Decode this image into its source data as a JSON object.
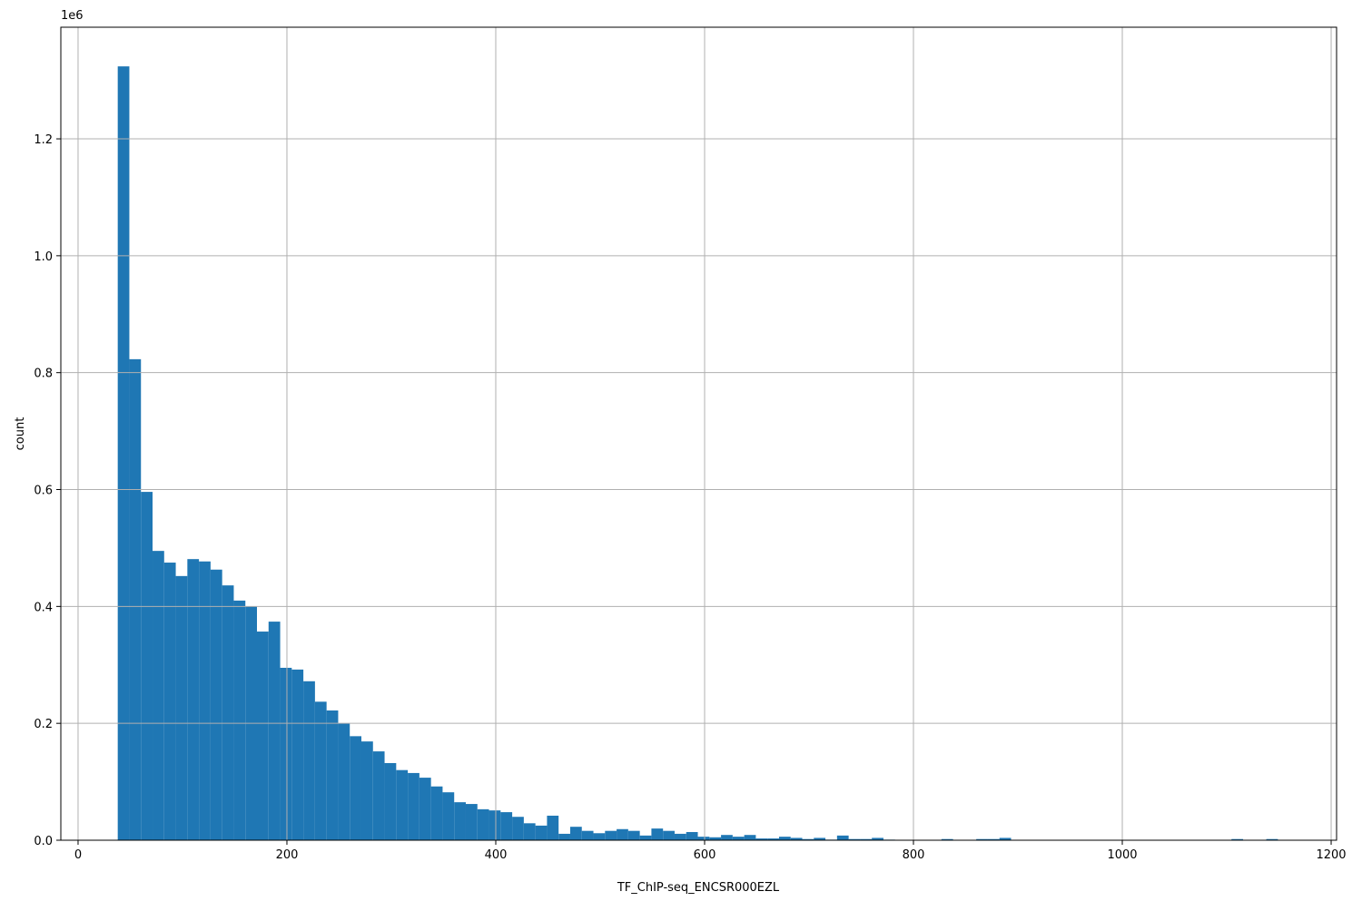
{
  "chart_data": {
    "type": "histogram",
    "x_label": "TF_ChIP-seq_ENCSR000EZL",
    "y_label": "count",
    "y_offset_label": "1e6",
    "color": "#1f77b4",
    "grid": true,
    "bins": [
      38,
      49.11,
      60.22,
      71.33,
      82.44,
      93.55,
      104.66,
      115.77,
      126.88,
      137.99,
      149.1,
      160.21,
      171.32,
      182.43,
      193.54,
      204.65,
      215.76,
      226.87,
      237.98,
      249.09,
      260.2,
      271.31,
      282.42,
      293.53,
      304.64,
      315.75,
      326.86,
      337.97,
      349.08,
      360.19,
      371.3,
      382.41,
      393.52,
      404.63,
      415.74,
      426.85,
      437.96,
      449.07,
      460.18,
      471.29,
      482.4,
      493.51,
      504.62,
      515.73,
      526.84,
      537.95,
      549.06,
      560.17,
      571.28,
      582.39,
      593.5,
      604.61,
      615.72,
      626.83,
      637.94,
      649.05,
      660.16,
      671.27,
      682.38,
      693.49,
      704.6,
      715.71,
      726.82,
      737.93,
      749.04,
      760.15,
      771.26,
      782.37,
      793.48,
      804.59,
      815.7,
      826.81,
      837.92,
      849.03,
      860.14,
      871.25,
      882.36,
      893.47,
      904.58,
      915.69,
      926.8,
      937.91,
      949.02,
      960.13,
      971.24,
      982.35,
      993.46,
      1004.57,
      1015.68,
      1026.79,
      1037.9,
      1049.01,
      1060.12,
      1071.23,
      1082.34,
      1093.45,
      1104.56,
      1115.67,
      1126.78,
      1137.89,
      1149
    ],
    "counts": [
      1324000,
      823000,
      596000,
      495000,
      475000,
      452000,
      481000,
      477000,
      463000,
      436000,
      410000,
      400000,
      357000,
      374000,
      295000,
      292000,
      272000,
      237000,
      222000,
      200000,
      178000,
      169000,
      152000,
      132000,
      120000,
      115000,
      107000,
      92000,
      82000,
      65000,
      62000,
      53000,
      51000,
      48000,
      40000,
      29000,
      25000,
      42000,
      11000,
      23000,
      16000,
      12000,
      16000,
      19000,
      16000,
      8000,
      20000,
      16000,
      11000,
      14000,
      6000,
      5000,
      9000,
      6000,
      9000,
      3000,
      3000,
      6000,
      4000,
      2000,
      4000,
      1000,
      8000,
      2000,
      2000,
      4000,
      1000,
      500,
      0,
      500,
      500,
      2000,
      0,
      500,
      2000,
      2000,
      4000,
      500,
      0,
      300,
      0,
      300,
      0,
      0,
      300,
      0,
      0,
      300,
      0,
      0,
      300,
      0,
      0,
      300,
      0,
      0,
      2000,
      0,
      500,
      2000
    ],
    "xlim": [
      -16.5,
      1205.2
    ],
    "xticks": [
      0,
      200,
      400,
      600,
      800,
      1000,
      1200
    ],
    "ylim": [
      0,
      1391000
    ],
    "yticks": [
      {
        "value": 0,
        "label": "0.0"
      },
      {
        "value": 200000,
        "label": "0.2"
      },
      {
        "value": 400000,
        "label": "0.4"
      },
      {
        "value": 600000,
        "label": "0.6"
      },
      {
        "value": 800000,
        "label": "0.8"
      },
      {
        "value": 1000000,
        "label": "1.0"
      },
      {
        "value": 1200000,
        "label": "1.2"
      }
    ]
  }
}
